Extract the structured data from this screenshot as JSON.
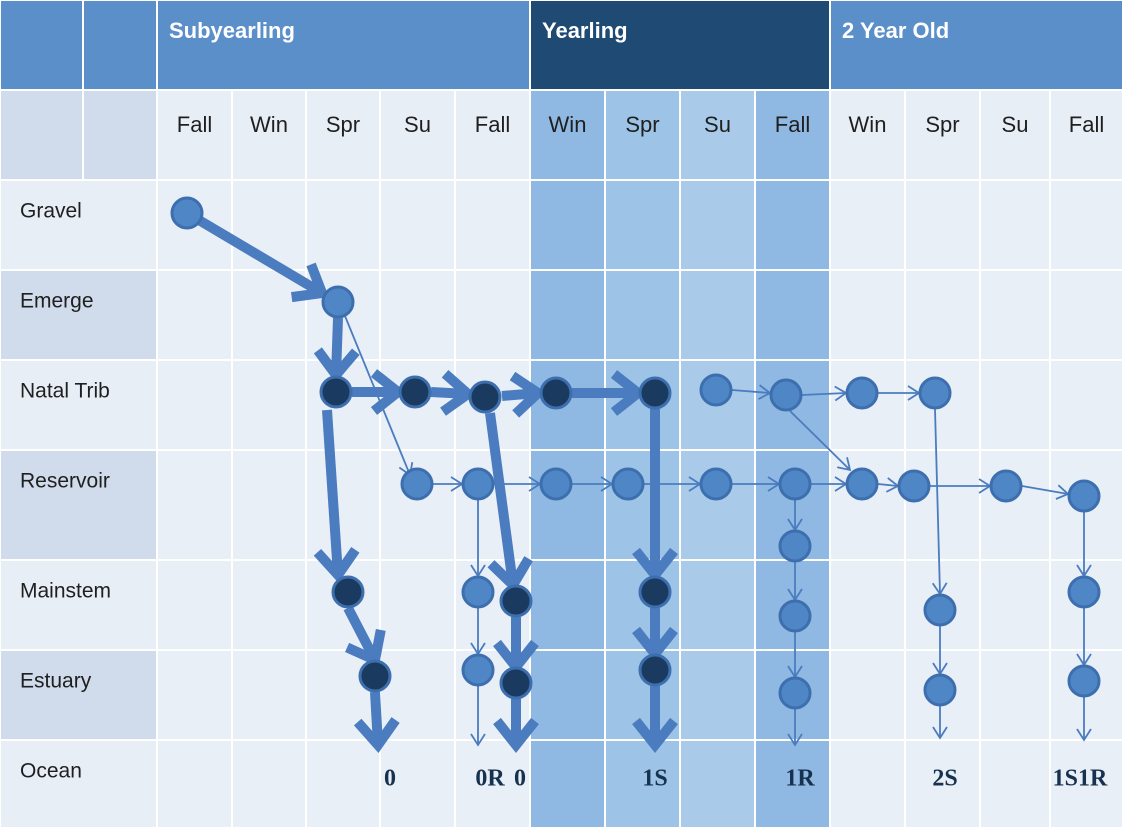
{
  "header": {
    "groups": [
      "Subyearling",
      "Yearling",
      "2 Year Old"
    ],
    "seasons": [
      "Fall",
      "Win",
      "Spr",
      "Su",
      "Fall",
      "Win",
      "Spr",
      "Su",
      "Fall",
      "Win",
      "Spr",
      "Su",
      "Fall"
    ]
  },
  "rows": [
    "Gravel",
    "Emerge",
    "Natal Trib",
    "Reservoir",
    "Mainstem",
    "Estuary",
    "Ocean"
  ],
  "outcomes": [
    "0",
    "0R",
    "0",
    "1S",
    "1R",
    "2S",
    "1S1R"
  ]
}
